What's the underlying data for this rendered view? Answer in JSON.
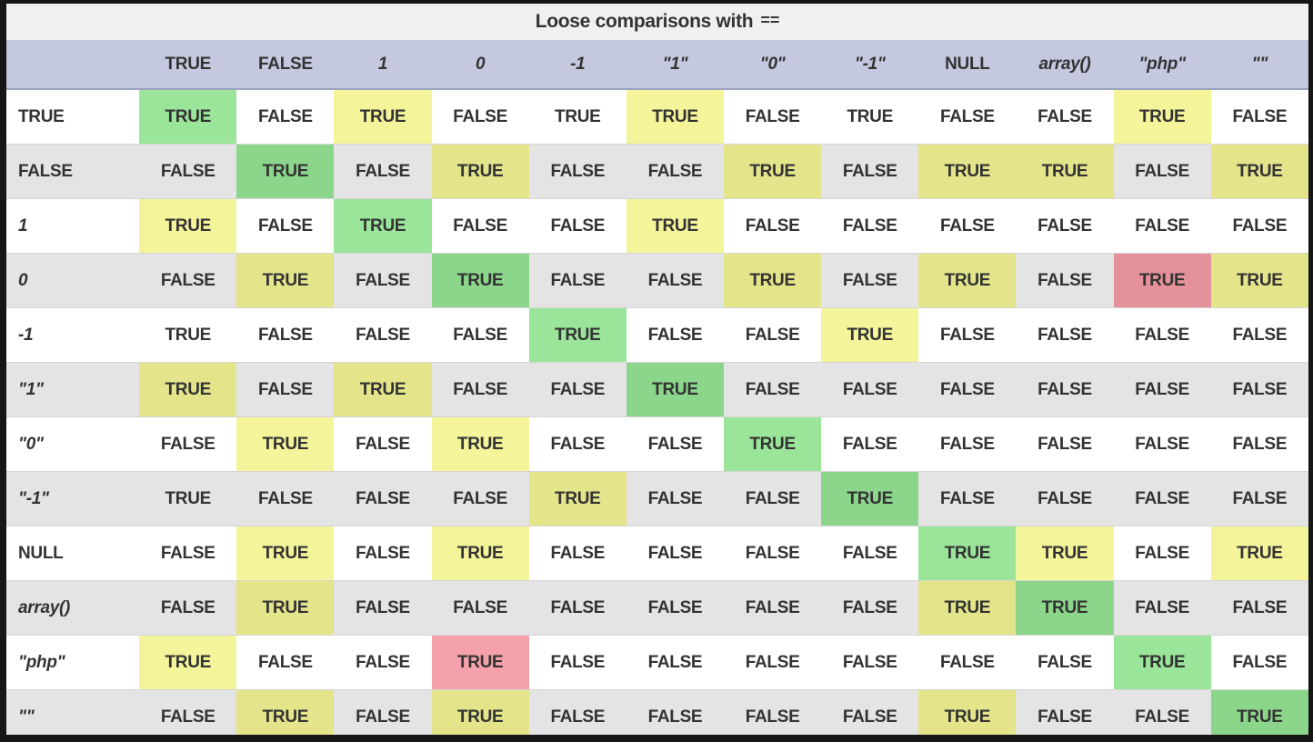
{
  "title": {
    "text": "Loose comparisons with",
    "operator": "=="
  },
  "table": {
    "operands": [
      {
        "label": "TRUE",
        "style": "keyword"
      },
      {
        "label": "FALSE",
        "style": "keyword"
      },
      {
        "label": "1",
        "style": "code"
      },
      {
        "label": "0",
        "style": "code"
      },
      {
        "label": "-1",
        "style": "code"
      },
      {
        "label": "\"1\"",
        "style": "code"
      },
      {
        "label": "\"0\"",
        "style": "code"
      },
      {
        "label": "\"-1\"",
        "style": "code"
      },
      {
        "label": "NULL",
        "style": "keyword"
      },
      {
        "label": "array()",
        "style": "code"
      },
      {
        "label": "\"php\"",
        "style": "code"
      },
      {
        "label": "\"\"",
        "style": "code"
      }
    ],
    "cell_format": "VALUE|highlight",
    "matrix": [
      [
        "TRUE|green",
        "FALSE|none",
        "TRUE|yellow",
        "FALSE|none",
        "TRUE|none",
        "TRUE|yellow",
        "FALSE|none",
        "TRUE|none",
        "FALSE|none",
        "FALSE|none",
        "TRUE|yellow",
        "FALSE|none"
      ],
      [
        "FALSE|none",
        "TRUE|green",
        "FALSE|none",
        "TRUE|yellow",
        "FALSE|none",
        "FALSE|none",
        "TRUE|yellow",
        "FALSE|none",
        "TRUE|yellow",
        "TRUE|yellow",
        "FALSE|none",
        "TRUE|yellow"
      ],
      [
        "TRUE|yellow",
        "FALSE|none",
        "TRUE|green",
        "FALSE|none",
        "FALSE|none",
        "TRUE|yellow",
        "FALSE|none",
        "FALSE|none",
        "FALSE|none",
        "FALSE|none",
        "FALSE|none",
        "FALSE|none"
      ],
      [
        "FALSE|none",
        "TRUE|yellow",
        "FALSE|none",
        "TRUE|green",
        "FALSE|none",
        "FALSE|none",
        "TRUE|yellow",
        "FALSE|none",
        "TRUE|yellow",
        "FALSE|none",
        "TRUE|red",
        "TRUE|yellow"
      ],
      [
        "TRUE|none",
        "FALSE|none",
        "FALSE|none",
        "FALSE|none",
        "TRUE|green",
        "FALSE|none",
        "FALSE|none",
        "TRUE|yellow",
        "FALSE|none",
        "FALSE|none",
        "FALSE|none",
        "FALSE|none"
      ],
      [
        "TRUE|yellow",
        "FALSE|none",
        "TRUE|yellow",
        "FALSE|none",
        "FALSE|none",
        "TRUE|green",
        "FALSE|none",
        "FALSE|none",
        "FALSE|none",
        "FALSE|none",
        "FALSE|none",
        "FALSE|none"
      ],
      [
        "FALSE|none",
        "TRUE|yellow",
        "FALSE|none",
        "TRUE|yellow",
        "FALSE|none",
        "FALSE|none",
        "TRUE|green",
        "FALSE|none",
        "FALSE|none",
        "FALSE|none",
        "FALSE|none",
        "FALSE|none"
      ],
      [
        "TRUE|none",
        "FALSE|none",
        "FALSE|none",
        "FALSE|none",
        "TRUE|yellow",
        "FALSE|none",
        "FALSE|none",
        "TRUE|green",
        "FALSE|none",
        "FALSE|none",
        "FALSE|none",
        "FALSE|none"
      ],
      [
        "FALSE|none",
        "TRUE|yellow",
        "FALSE|none",
        "TRUE|yellow",
        "FALSE|none",
        "FALSE|none",
        "FALSE|none",
        "FALSE|none",
        "TRUE|green",
        "TRUE|yellow",
        "FALSE|none",
        "TRUE|yellow"
      ],
      [
        "FALSE|none",
        "TRUE|yellow",
        "FALSE|none",
        "FALSE|none",
        "FALSE|none",
        "FALSE|none",
        "FALSE|none",
        "FALSE|none",
        "TRUE|yellow",
        "TRUE|green",
        "FALSE|none",
        "FALSE|none"
      ],
      [
        "TRUE|yellow",
        "FALSE|none",
        "FALSE|none",
        "TRUE|red",
        "FALSE|none",
        "FALSE|none",
        "FALSE|none",
        "FALSE|none",
        "FALSE|none",
        "FALSE|none",
        "TRUE|green",
        "FALSE|none"
      ],
      [
        "FALSE|none",
        "TRUE|yellow",
        "FALSE|none",
        "TRUE|yellow",
        "FALSE|none",
        "FALSE|none",
        "FALSE|none",
        "FALSE|none",
        "TRUE|yellow",
        "FALSE|none",
        "FALSE|none",
        "TRUE|green"
      ]
    ]
  },
  "colors": {
    "frame_border": "#161616",
    "title_bg": "#f0f0f0",
    "header_bg": "#c4c9e0",
    "row_bg": "#ffffff",
    "row_alt_bg": "#e4e4e4",
    "highlight_green": "#98e698",
    "highlight_yellow": "#f4f49b",
    "highlight_red": "#f5a1ab",
    "text": "#333333",
    "green_text": "#1f7a1f",
    "yellow_text": "#82821f",
    "red_text": "#8c1f2d"
  }
}
